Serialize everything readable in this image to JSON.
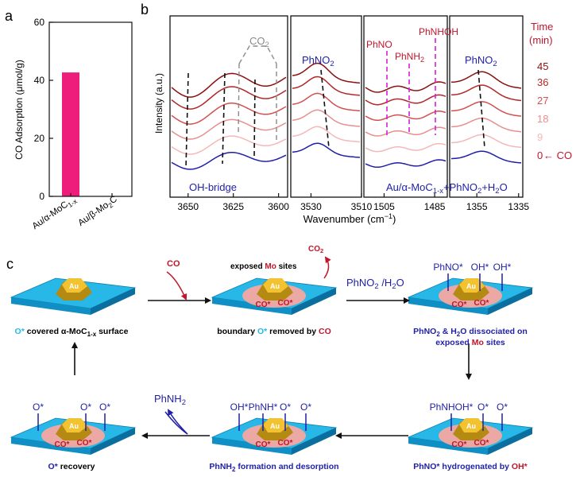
{
  "panel_labels": {
    "a": "a",
    "b": "b",
    "c": "c"
  },
  "colors": {
    "bar": "#ee1c7a",
    "blue_text": "#1f1fa8",
    "red_text": "#c0162c",
    "substrate_top": "#27b8e8",
    "substrate_side": "#0f8fc4",
    "au_top": "#f2c230",
    "au_side": "#b58a12",
    "boundary": "#f5a6a0",
    "magenta_line": "#d61fd6",
    "gray": "#8a8a8a"
  },
  "chart_a": {
    "type": "bar",
    "ylabel": "CO Adsorption (μmol/g)",
    "ylim": [
      0,
      60
    ],
    "yticks": [
      "0",
      "20",
      "40",
      "60"
    ],
    "categories": [
      "Au/α-MoC1-x",
      "Au/β-Mo2C"
    ],
    "category_parts": [
      {
        "main": "Au/α-MoC",
        "sub": "1-x",
        "tail": ""
      },
      {
        "main": "Au/β-Mo",
        "sub": "2",
        "tail": "C"
      }
    ],
    "values": [
      42.7,
      0
    ]
  },
  "chart_b": {
    "type": "line",
    "ylabel": "Intensity (a.u.)",
    "xlabel": "Wavenumber (cm⁻¹)",
    "xlabel_main": "Wavenumber (cm",
    "xlabel_sup": "−1",
    "xlabel_tail": ")",
    "panels": [
      {
        "xlim": [
          3660,
          3595
        ],
        "xticks": [
          3650,
          3625,
          3600
        ]
      },
      {
        "xlim": [
          3538,
          3510
        ],
        "xticks": [
          3530,
          3510
        ]
      },
      {
        "xlim": [
          1513,
          1480
        ],
        "xticks": [
          1505,
          1485
        ]
      },
      {
        "xlim": [
          1368,
          1333
        ],
        "xticks": [
          1355,
          1335
        ]
      }
    ],
    "time_header_1": "Time",
    "time_header_2": "(min)",
    "series": [
      {
        "name": "0",
        "color": "#1f1fa8"
      },
      {
        "name": "9",
        "color": "#f4b8b8"
      },
      {
        "name": "18",
        "color": "#e88e8e"
      },
      {
        "name": "27",
        "color": "#d25050"
      },
      {
        "name": "36",
        "color": "#b02828"
      },
      {
        "name": "45",
        "color": "#8a1010"
      }
    ],
    "co_marker": "← CO",
    "annotations": {
      "co2_main": "CO",
      "co2_sub": "2",
      "oh_bridge": "OH-bridge",
      "phno2_1_main": "PhNO",
      "phno2_1_sub": "2",
      "phno": "PhNO",
      "phnh2_main": "PhNH",
      "phnh2_sub": "2",
      "phnhoh": "PhNHOH",
      "phno2_2_main": "PhNO",
      "phno2_2_sub": "2",
      "sample_1": "Au/α-MoC",
      "sample_sub1": "1-x",
      "sample_2": "+PhNO",
      "sample_sub2": "2",
      "sample_3": "+H",
      "sample_sub3": "2",
      "sample_4": "O"
    }
  },
  "scheme": {
    "au": "Au",
    "co_label": "CO",
    "co2_main": "CO",
    "co2_sub": "2",
    "exposed_1": "exposed ",
    "exposed_mo": "Mo",
    "exposed_2": " sites",
    "reagent_main": "PhNO",
    "reagent_sub": "2",
    "reagent_tail": " /H",
    "reagent_sub2": "2",
    "reagent_end": "O",
    "phnh2_main": "PhNH",
    "phnh2_sub": "2",
    "co_star": "CO*",
    "o_star": "O*",
    "oh_star": "OH*",
    "phno_star": "PhNO*",
    "phnhoh_star": "PhNHOH*",
    "phnh_star": "PhNH*",
    "caption1_a": "O*",
    "caption1_b": " covered α-MoC",
    "caption1_sub": "1-x",
    "caption1_c": " surface",
    "caption2_a": "boundary ",
    "caption2_b": "O*",
    "caption2_c": " removed by ",
    "caption2_d": "CO",
    "caption3_a": "PhNO",
    "caption3_sub": "2",
    "caption3_b": " & H",
    "caption3_sub2": "2",
    "caption3_c": "O dissociated on",
    "caption3_d": "exposed ",
    "caption3_e": "Mo",
    "caption3_f": " sites",
    "caption4_a": "PhNO*",
    "caption4_b": " hydrogenated by ",
    "caption4_c": "OH*",
    "caption5_a": "PhNH",
    "caption5_sub": "2",
    "caption5_b": " formation and desorption",
    "caption6_a": "O*",
    "caption6_b": " recovery"
  }
}
